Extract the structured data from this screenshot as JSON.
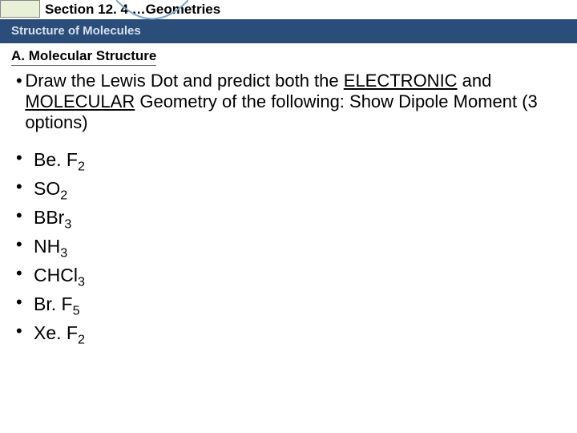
{
  "header": {
    "section_label": "Section 12. 4 …Geometries",
    "subtitle": "Structure of Molecules"
  },
  "heading": "A. Molecular Structure",
  "intro": {
    "line1_a": "Draw the Lewis Dot and predict both the ",
    "line1_u1": "ELECTRONIC",
    "line1_b": " and ",
    "line1_u2": "MOLECULAR",
    "line1_c": " Geometry of the following: Show Dipole Moment (3 options)"
  },
  "molecules": [
    {
      "base": "Be. F",
      "sub": "2"
    },
    {
      "base": "SO",
      "sub": "2"
    },
    {
      "base": "BBr",
      "sub": "3"
    },
    {
      "base": "NH",
      "sub": "3"
    },
    {
      "base": "CHCl",
      "sub": "3"
    },
    {
      "base": "Br. F",
      "sub": "5"
    },
    {
      "base": "Xe. F",
      "sub": "2"
    }
  ],
  "colors": {
    "blue_band": "#2a4d7a",
    "tab_bg": "#e8f0d8",
    "curve": "#7aa5c9"
  }
}
